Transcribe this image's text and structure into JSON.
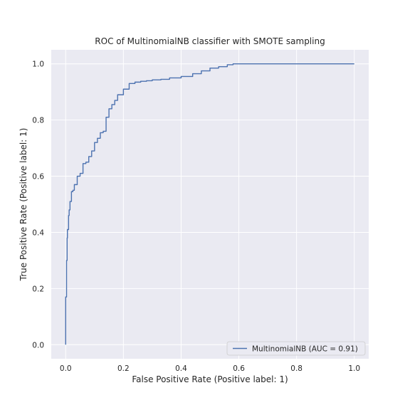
{
  "chart_data": {
    "type": "line",
    "title": "ROC of MultinomialNB classifier with SMOTE sampling",
    "xlabel": "False Positive Rate (Positive label: 1)",
    "ylabel": "True Positive Rate (Positive label: 1)",
    "xlim": [
      -0.05,
      1.05
    ],
    "ylim": [
      -0.05,
      1.05
    ],
    "xticks": [
      "0.0",
      "0.2",
      "0.4",
      "0.6",
      "0.8",
      "1.0"
    ],
    "yticks": [
      "0.0",
      "0.2",
      "0.4",
      "0.6",
      "0.8",
      "1.0"
    ],
    "grid": true,
    "legend_position": "lower-right",
    "series": [
      {
        "name": "MultinomialNB (AUC = 0.91)",
        "color": "#4c72b0",
        "x": [
          0.0,
          0.0,
          0.003,
          0.005,
          0.006,
          0.01,
          0.012,
          0.015,
          0.02,
          0.025,
          0.03,
          0.04,
          0.05,
          0.06,
          0.07,
          0.08,
          0.09,
          0.1,
          0.11,
          0.12,
          0.13,
          0.14,
          0.15,
          0.16,
          0.17,
          0.18,
          0.2,
          0.22,
          0.24,
          0.26,
          0.28,
          0.3,
          0.33,
          0.36,
          0.4,
          0.44,
          0.47,
          0.5,
          0.53,
          0.56,
          0.58,
          0.6,
          0.8,
          1.0
        ],
        "y": [
          0.0,
          0.1,
          0.17,
          0.3,
          0.38,
          0.41,
          0.46,
          0.48,
          0.51,
          0.545,
          0.55,
          0.57,
          0.6,
          0.61,
          0.645,
          0.65,
          0.67,
          0.69,
          0.72,
          0.735,
          0.755,
          0.76,
          0.81,
          0.84,
          0.855,
          0.87,
          0.89,
          0.91,
          0.93,
          0.935,
          0.938,
          0.94,
          0.943,
          0.945,
          0.95,
          0.955,
          0.965,
          0.975,
          0.985,
          0.99,
          0.997,
          1.0,
          1.0,
          1.0
        ]
      }
    ]
  }
}
